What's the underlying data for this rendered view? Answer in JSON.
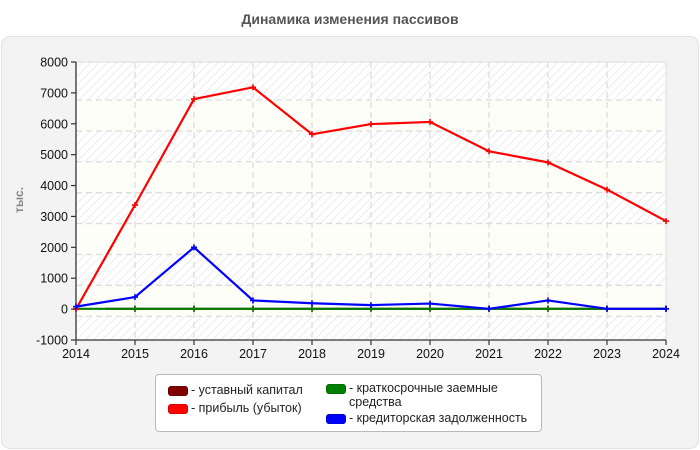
{
  "title": "Динамика изменения пассивов",
  "chart_data": {
    "type": "line",
    "title": "Динамика изменения пассивов",
    "xlabel": "",
    "ylabel": "тыс.",
    "x": [
      2014,
      2015,
      2016,
      2017,
      2018,
      2019,
      2020,
      2021,
      2022,
      2023,
      2024
    ],
    "ylim": [
      -1000,
      8000
    ],
    "yticks": [
      -1000,
      0,
      1000,
      2000,
      3000,
      4000,
      5000,
      6000,
      7000,
      8000
    ],
    "grid": true,
    "legend_position": "bottom",
    "series": [
      {
        "name": "уставный капитал",
        "color": "#800000",
        "values": [
          null,
          10,
          10,
          10,
          10,
          10,
          10,
          10,
          10,
          10,
          10
        ]
      },
      {
        "name": "краткосрочные заемные средства",
        "color": "#008000",
        "values": [
          10,
          10,
          10,
          10,
          10,
          10,
          10,
          10,
          10,
          10,
          10
        ]
      },
      {
        "name": "прибыль (убыток)",
        "color": "#ff0000",
        "values": [
          0,
          3370,
          6800,
          7180,
          5660,
          5990,
          6060,
          5110,
          4750,
          3870,
          2850
        ]
      },
      {
        "name": "кредиторская задолженность",
        "color": "#0000ff",
        "values": [
          80,
          390,
          2000,
          280,
          190,
          130,
          180,
          10,
          280,
          10,
          10
        ]
      }
    ]
  },
  "legend": {
    "items": [
      {
        "label": "- уставный капитал",
        "color": "#800000"
      },
      {
        "label": "- прибыль (убыток)",
        "color": "#ff0000"
      },
      {
        "label": "- краткосрочные заемные средства",
        "color": "#008000"
      },
      {
        "label": "- кредиторская задолженность",
        "color": "#0000ff"
      }
    ]
  }
}
